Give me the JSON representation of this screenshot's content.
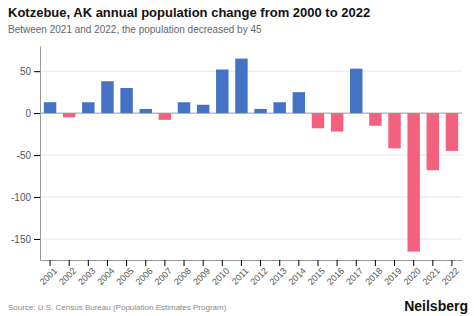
{
  "chart_data": {
    "type": "bar",
    "title": "Kotzebue, AK annual population change from 2000 to 2022",
    "subtitle": "Between 2021 and 2022, the population decreased by 45",
    "source": "Source: U.S. Census Bureau (Population Estimates Program)",
    "watermark": "Neilsberg",
    "categories": [
      "2001",
      "2002",
      "2003",
      "2004",
      "2005",
      "2006",
      "2007",
      "2008",
      "2009",
      "2010",
      "2011",
      "2012",
      "2013",
      "2014",
      "2015",
      "2016",
      "2017",
      "2018",
      "2019",
      "2020",
      "2021",
      "2022"
    ],
    "values": [
      13,
      -5,
      13,
      38,
      30,
      5,
      -8,
      13,
      10,
      52,
      65,
      5,
      13,
      25,
      -18,
      -22,
      53,
      -15,
      -42,
      -165,
      -68,
      -45
    ],
    "colors": [
      "#4472C4",
      "#F4617F",
      "#4472C4",
      "#4472C4",
      "#4472C4",
      "#4472C4",
      "#F4617F",
      "#4472C4",
      "#4472C4",
      "#4472C4",
      "#4472C4",
      "#4472C4",
      "#4472C4",
      "#4472C4",
      "#F4617F",
      "#F4617F",
      "#4472C4",
      "#F4617F",
      "#F4617F",
      "#F4617F",
      "#F4617F",
      "#F4617F"
    ],
    "ylim": [
      -175,
      80
    ],
    "yticks": [
      -150,
      -100,
      -50,
      0,
      50
    ],
    "grid": true
  }
}
